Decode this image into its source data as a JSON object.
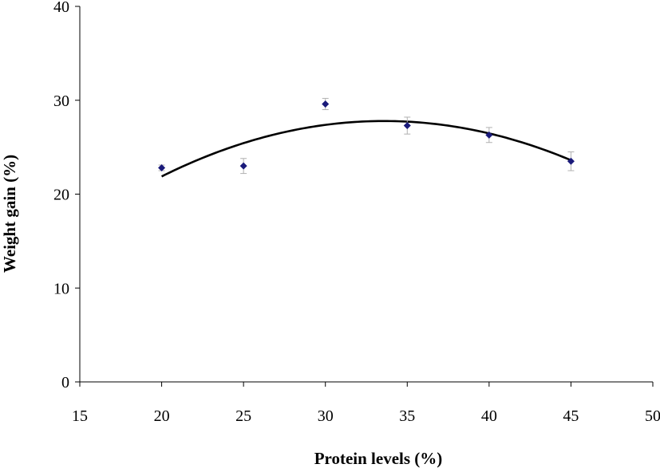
{
  "chart_data": {
    "type": "scatter",
    "title": "",
    "xlabel": "Protein levels (%)",
    "ylabel": "Weight gain (%)",
    "xlim": [
      15,
      50
    ],
    "ylim": [
      0,
      40
    ],
    "xticks": [
      15,
      20,
      25,
      30,
      35,
      40,
      45,
      50
    ],
    "yticks": [
      0,
      10,
      20,
      30,
      40
    ],
    "grid": false,
    "legend": "none",
    "marker_color": "#1a1a7a",
    "errorbar_color": "#b0b0b0",
    "curve_color": "#000000",
    "points": [
      {
        "x": 20,
        "y": 22.8,
        "err": 0.3
      },
      {
        "x": 25,
        "y": 23.0,
        "err": 0.8
      },
      {
        "x": 30,
        "y": 29.6,
        "err": 0.6
      },
      {
        "x": 35,
        "y": 27.3,
        "err": 0.9
      },
      {
        "x": 40,
        "y": 26.3,
        "err": 0.8
      },
      {
        "x": 45,
        "y": 23.5,
        "err": 1.0
      }
    ],
    "trendline": {
      "type": "polynomial",
      "x_range": [
        20,
        45
      ],
      "points": [
        [
          20,
          21.9
        ],
        [
          25,
          25.4
        ],
        [
          30,
          27.4
        ],
        [
          35,
          27.7
        ],
        [
          40,
          26.5
        ],
        [
          45,
          23.6
        ]
      ]
    }
  }
}
